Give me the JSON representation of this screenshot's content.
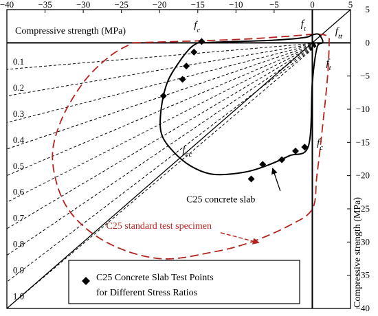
{
  "chart_data": {
    "type": "line",
    "xlim": [
      -40,
      5
    ],
    "ylim": [
      -40,
      5
    ],
    "x_ticks": [
      -40,
      -35,
      -30,
      -25,
      -20,
      -15,
      -10,
      -5,
      0,
      5
    ],
    "y_ticks": [
      5,
      0,
      -5,
      -10,
      -15,
      -20,
      -25,
      -30,
      -35,
      -40
    ],
    "x_ticks_text": [
      "−40",
      "−35",
      "−30",
      "−25",
      "−20",
      "−15",
      "−10",
      "−5",
      "0",
      "5"
    ],
    "y_ticks_text": [
      "5",
      "0",
      "−5",
      "−10",
      "−15",
      "−20",
      "−25",
      "−30",
      "−35",
      "−40"
    ],
    "xlabel": "Compressive strength (MPa)",
    "ylabel": "Compressive strength (MPa)",
    "grid": false,
    "legend_placement": "bottom-left",
    "legend": {
      "line1": "C25 Concrete Slab Test Points",
      "line2": "for Different Stress Ratios"
    },
    "colors": {
      "slab": "#000000",
      "standard": "#b5231e",
      "ratio_lines": "#000000"
    },
    "stress_ratio_lines": {
      "origin": [
        1.0,
        0.0
      ],
      "ratios": [
        0.1,
        0.2,
        0.3,
        0.4,
        0.5,
        0.6,
        0.7,
        0.8,
        0.9,
        1.0
      ],
      "labels": [
        "0.1",
        "0.2",
        "0.3",
        "0.4",
        "0.5",
        "0.6",
        "0.7",
        "0.8",
        "0.9",
        "1.0"
      ]
    },
    "series": [
      {
        "name": "C25 concrete slab",
        "style": "solid",
        "points": [
          [
            -15,
            0
          ],
          [
            -10,
            0.2
          ],
          [
            -5,
            0.4
          ],
          [
            -1,
            0.8
          ],
          [
            0,
            1.2
          ],
          [
            0.8,
            1.3
          ],
          [
            1.3,
            0.5
          ],
          [
            1.3,
            0
          ],
          [
            0.6,
            -0.8
          ],
          [
            0,
            -6
          ],
          [
            -0.5,
            -15.5
          ],
          [
            -3,
            -17
          ],
          [
            -6,
            -18.5
          ],
          [
            -9,
            -19.5
          ],
          [
            -13,
            -19.8
          ],
          [
            -16,
            -18.5
          ],
          [
            -18.5,
            -16
          ],
          [
            -19.8,
            -13.5
          ],
          [
            -19.8,
            -10
          ],
          [
            -19,
            -6
          ],
          [
            -17.5,
            -3
          ],
          [
            -16,
            -0.8
          ],
          [
            -15,
            0
          ]
        ]
      },
      {
        "name": "C25 standard test specimen",
        "style": "dashed",
        "points": [
          [
            -23.5,
            0
          ],
          [
            -10,
            0.5
          ],
          [
            -3,
            1
          ],
          [
            0.5,
            1.3
          ],
          [
            2,
            1
          ],
          [
            2.2,
            0
          ],
          [
            2,
            -5
          ],
          [
            1.4,
            -12
          ],
          [
            0.6,
            -20
          ],
          [
            0,
            -25
          ],
          [
            -3,
            -27.5
          ],
          [
            -8,
            -30
          ],
          [
            -13,
            -31.5
          ],
          [
            -20,
            -32.5
          ],
          [
            -27,
            -30
          ],
          [
            -32,
            -25
          ],
          [
            -34,
            -18
          ],
          [
            -33,
            -12
          ],
          [
            -30,
            -6
          ],
          [
            -26.5,
            -2
          ],
          [
            -23.5,
            0
          ]
        ]
      },
      {
        "name": "C25 Concrete Slab Test Points for Different Stress Ratios",
        "type": "scatter",
        "marker": "diamond",
        "points": [
          [
            -14.5,
            0.2
          ],
          [
            -15.5,
            -1.4
          ],
          [
            -16.5,
            -3.5
          ],
          [
            -17,
            -5.5
          ],
          [
            -19.5,
            -8
          ],
          [
            -1,
            -15.7
          ],
          [
            -2.2,
            -16.3
          ],
          [
            -4,
            -17.6
          ],
          [
            -6.5,
            -18.3
          ],
          [
            -8,
            -20.5
          ]
        ]
      }
    ],
    "reference_lines": [
      {
        "name": "equal biaxial line",
        "from": [
          -40,
          -40
        ],
        "to": [
          5,
          5
        ]
      }
    ],
    "annotations": {
      "fc_top": {
        "label": "f",
        "sub": "c",
        "at": [
          -15.5,
          2.2
        ]
      },
      "ft_top": {
        "label": "f",
        "sub": "t",
        "at": [
          -1.5,
          2.4
        ]
      },
      "ftt": {
        "label": "f",
        "sub": "tt",
        "at": [
          3,
          1.3
        ]
      },
      "ft_right": {
        "label": "f",
        "sub": "t",
        "at": [
          1.8,
          -3.5
        ]
      },
      "fc_right": {
        "label": "f",
        "sub": "c",
        "at": [
          0.6,
          -15.5
        ]
      },
      "fcc": {
        "label": "f",
        "sub": "cc",
        "at": [
          -17,
          -16.5
        ]
      },
      "slab_label": {
        "text": "C25 concrete slab",
        "at": [
          -16.5,
          -24
        ]
      },
      "standard_label": {
        "text": "C25 standard test specimen",
        "at": [
          -27,
          -28
        ]
      }
    }
  }
}
